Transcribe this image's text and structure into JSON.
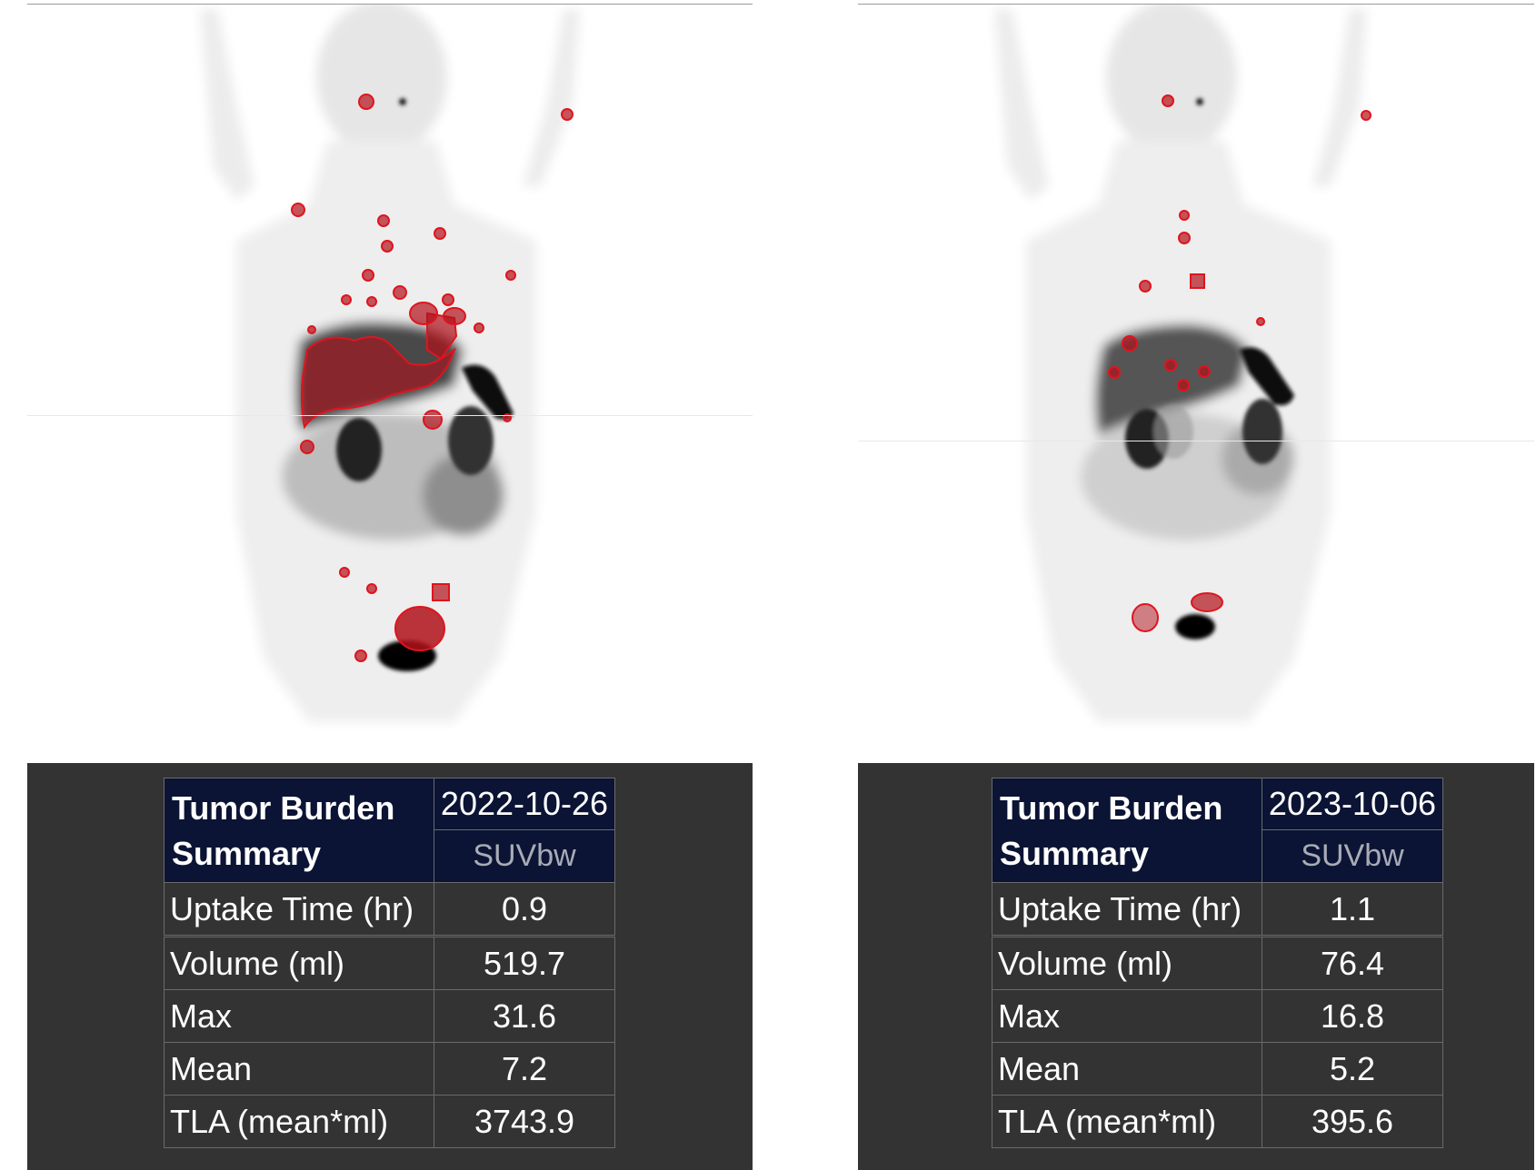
{
  "panels": [
    {
      "id": "left",
      "summary": {
        "title": "Tumor Burden Summary",
        "date": "2022-10-26",
        "unit": "SUVbw",
        "rows": [
          {
            "label": "Uptake Time (hr)",
            "value": "0.9"
          },
          {
            "label": "Volume (ml)",
            "value": "519.7"
          },
          {
            "label": "Max",
            "value": "31.6"
          },
          {
            "label": "Mean",
            "value": "7.2"
          },
          {
            "label": "TLA (mean*ml)",
            "value": "3743.9"
          }
        ]
      }
    },
    {
      "id": "right",
      "summary": {
        "title": "Tumor Burden Summary",
        "date": "2023-10-06",
        "unit": "SUVbw",
        "rows": [
          {
            "label": "Uptake Time (hr)",
            "value": "1.1"
          },
          {
            "label": "Volume (ml)",
            "value": "76.4"
          },
          {
            "label": "Max",
            "value": "16.8"
          },
          {
            "label": "Mean",
            "value": "5.2"
          },
          {
            "label": "TLA (mean*ml)",
            "value": "395.6"
          }
        ]
      }
    }
  ],
  "colors": {
    "background": "#ffffff",
    "summary_bg": "#333333",
    "header_bg": "#0b1434",
    "lesion_outline": "#e0141e",
    "lesion_fill": "#b0101a"
  }
}
